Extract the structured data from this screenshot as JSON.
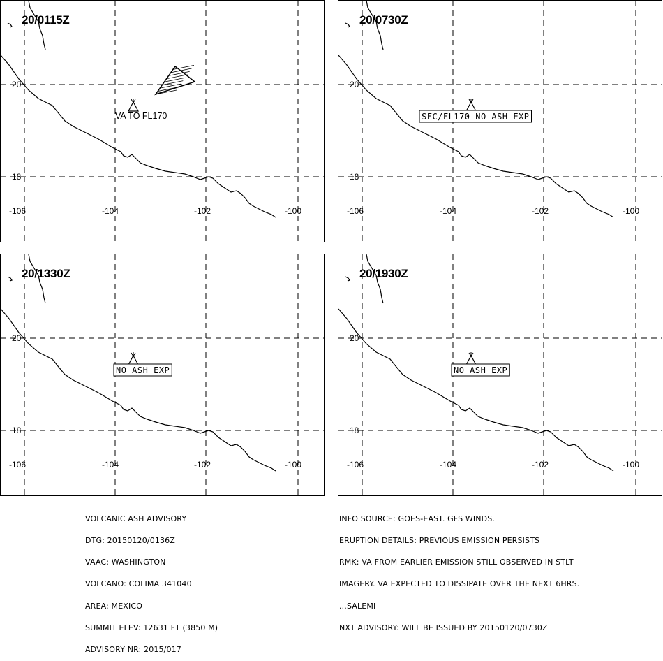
{
  "panels": [
    {
      "time": "20/0115Z",
      "label": "VA TO FL170",
      "label_type": "plain",
      "show_ash": true
    },
    {
      "time": "20/0730Z",
      "label": "SFC/FL170 NO ASH EXP",
      "label_type": "box",
      "show_ash": false
    },
    {
      "time": "20/1330Z",
      "label": "NO ASH EXP",
      "label_type": "box",
      "show_ash": false
    },
    {
      "time": "20/1930Z",
      "label": "NO ASH EXP",
      "label_type": "box",
      "show_ash": false
    }
  ],
  "axes": {
    "lon_ticks": [
      "-106",
      "-104",
      "-102",
      "-100"
    ],
    "lat_ticks": [
      "20",
      "18"
    ]
  },
  "advisory_left": [
    "VOLCANIC ASH ADVISORY",
    "DTG: 20150120/0136Z",
    "VAAC: WASHINGTON",
    "VOLCANO: COLIMA 341040",
    "AREA: MEXICO",
    "SUMMIT ELEV: 12631 FT (3850 M)",
    "ADVISORY NR: 2015/017"
  ],
  "advisory_right": [
    "INFO SOURCE: GOES-EAST. GFS WINDS.",
    "ERUPTION DETAILS: PREVIOUS EMISSION PERSISTS",
    "RMK: VA FROM EARLIER EMISSION STILL OBSERVED IN STLT",
    "IMAGERY. VA EXPECTED TO DISSIPATE OVER THE NEXT 6HRS.",
    "...SALEMI",
    "NXT ADVISORY: WILL BE ISSUED BY 20150120/0730Z"
  ],
  "colors": {
    "line": "#000000",
    "background": "#ffffff"
  }
}
